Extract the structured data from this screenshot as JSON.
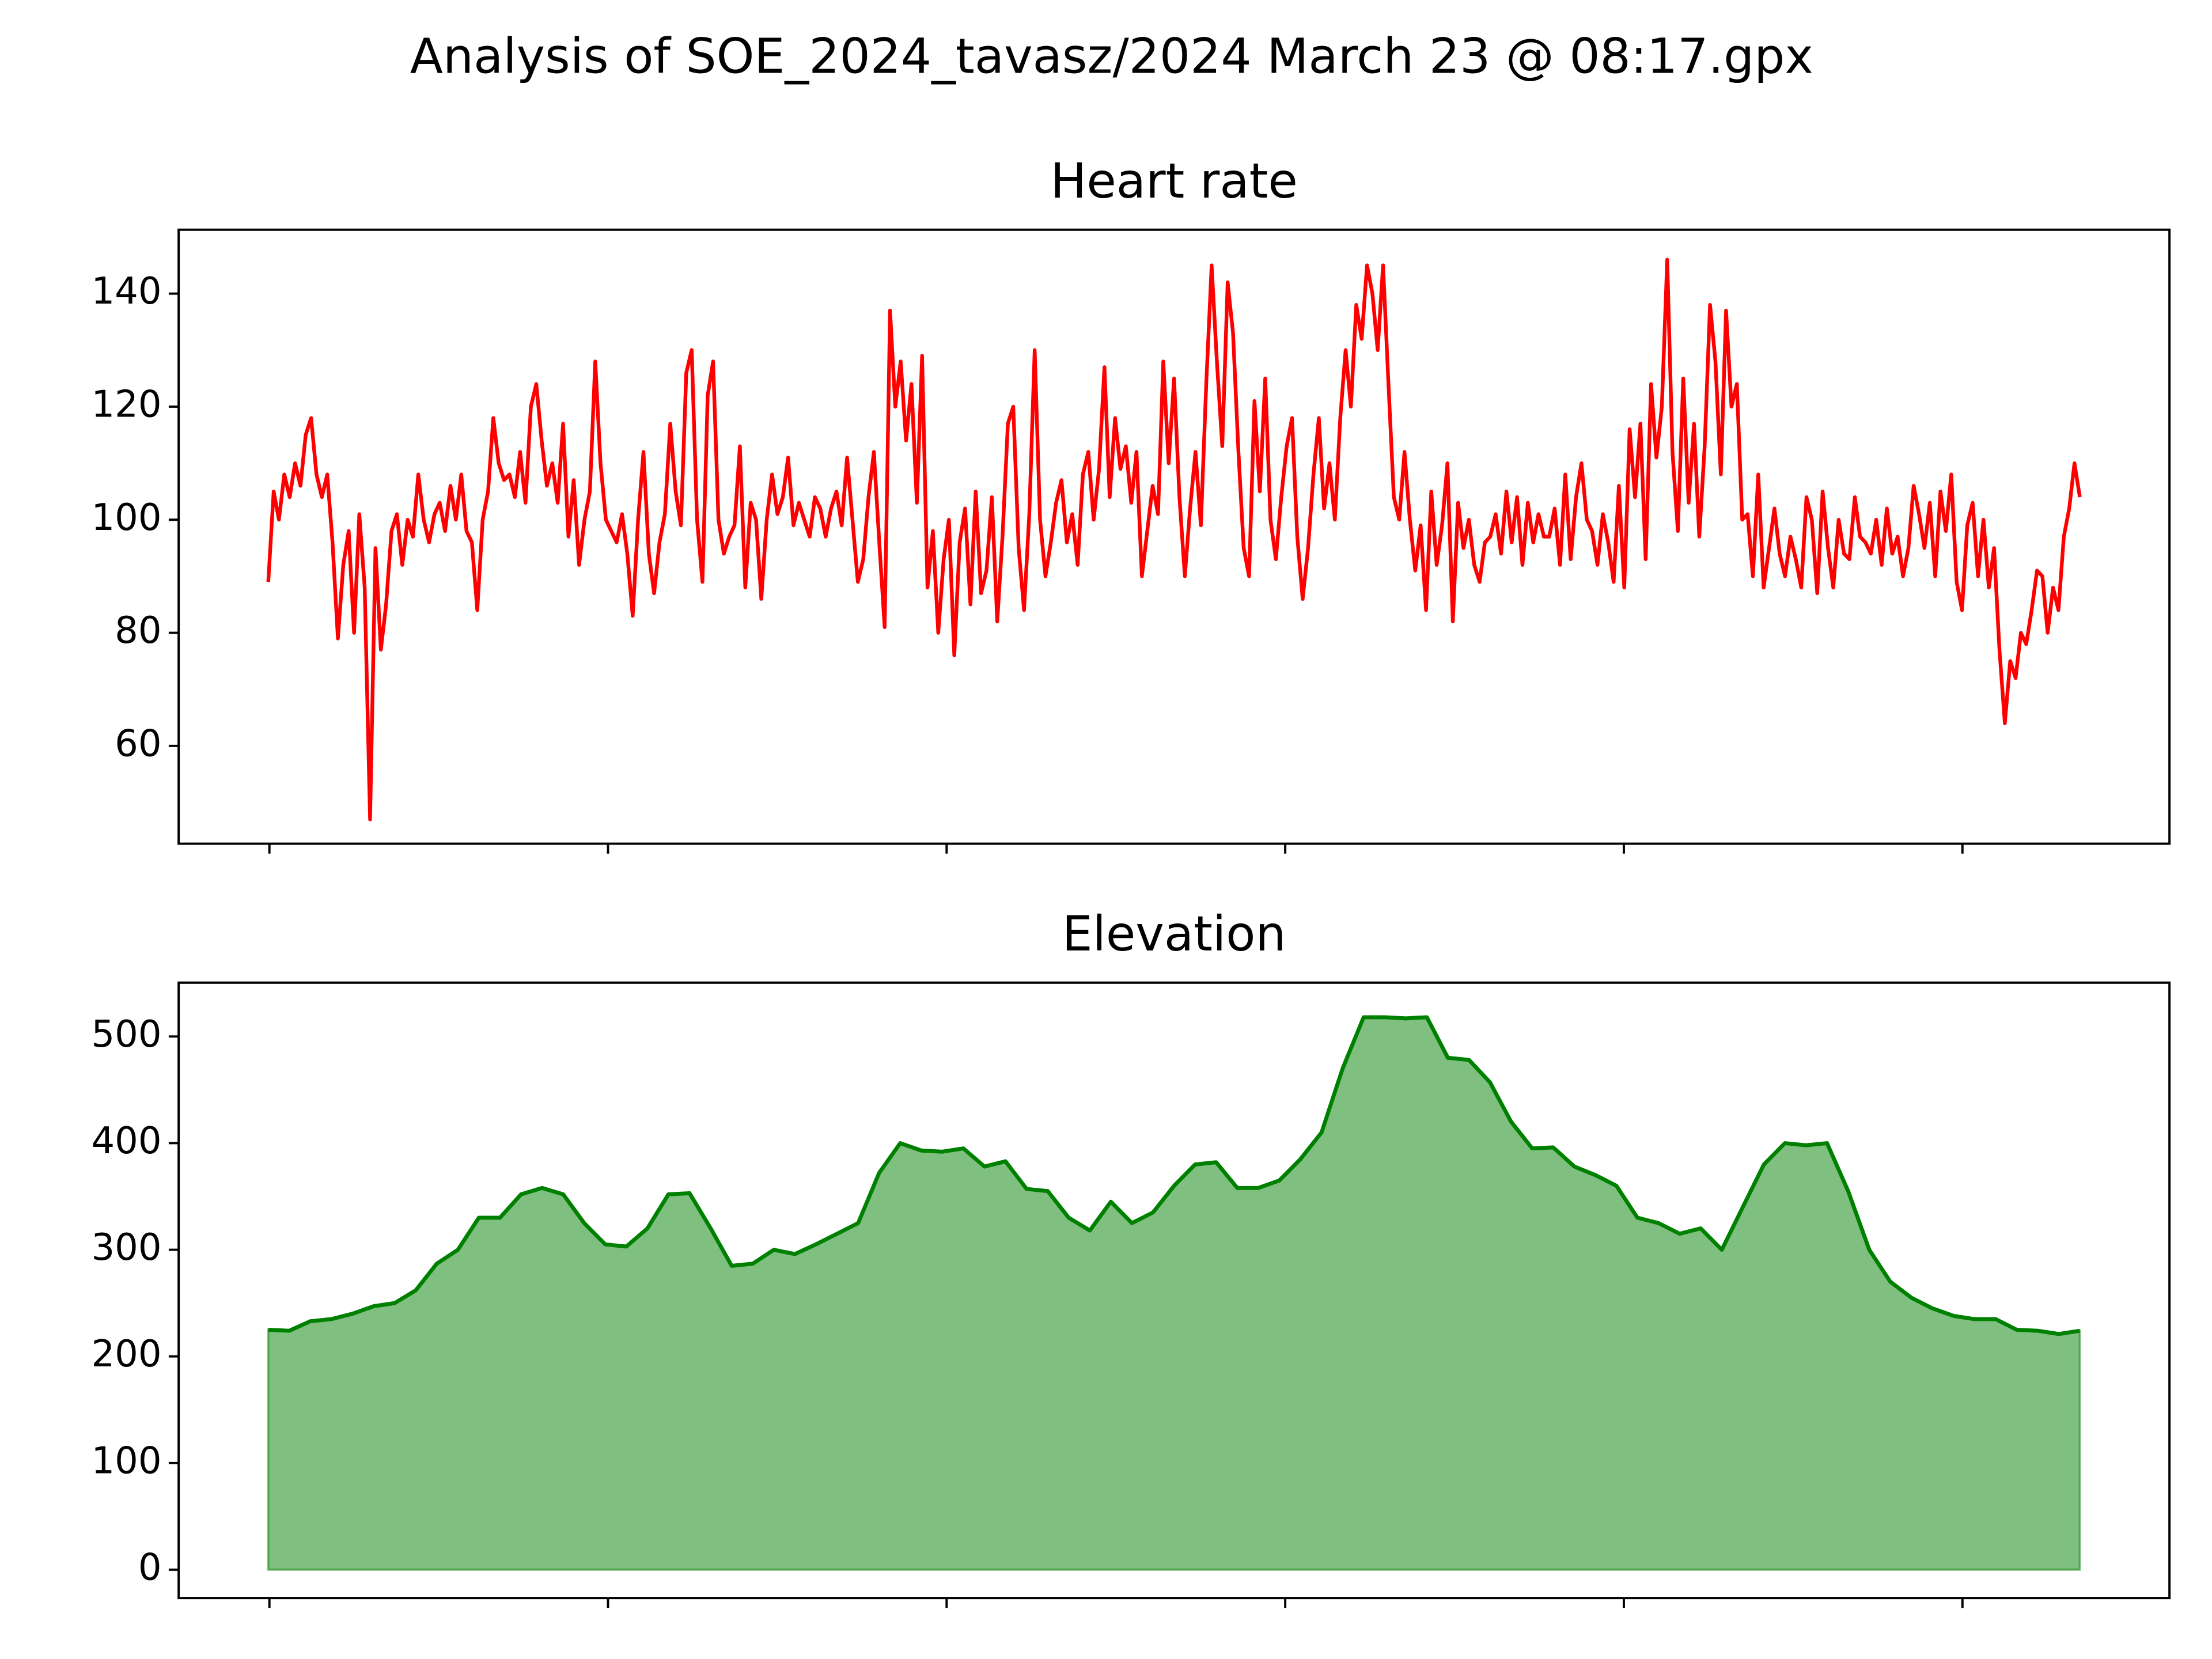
{
  "title": "Analysis of SOE_2024_tavasz/2024 March 23 @ 08:17.gpx",
  "chart_data": [
    {
      "type": "line",
      "title": "Heart rate",
      "color": "#ff0000",
      "ylim": [
        42.7,
        151.3
      ],
      "yticks": [
        60,
        80,
        100,
        120,
        140
      ],
      "values": [
        89,
        105,
        100,
        108,
        104,
        110,
        106,
        115,
        118,
        108,
        104,
        108,
        96,
        79,
        92,
        98,
        80,
        101,
        88,
        47,
        95,
        77,
        85,
        98,
        101,
        92,
        100,
        97,
        108,
        100,
        96,
        101,
        103,
        98,
        106,
        100,
        108,
        98,
        96,
        84,
        100,
        105,
        118,
        110,
        107,
        108,
        104,
        112,
        103,
        120,
        124,
        114,
        106,
        110,
        103,
        117,
        97,
        107,
        92,
        100,
        105,
        128,
        110,
        100,
        98,
        96,
        101,
        94,
        83,
        100,
        112,
        94,
        87,
        96,
        101,
        117,
        105,
        99,
        126,
        130,
        100,
        89,
        122,
        128,
        100,
        94,
        97,
        99,
        113,
        88,
        103,
        100,
        86,
        100,
        108,
        101,
        104,
        111,
        99,
        103,
        100,
        97,
        104,
        102,
        97,
        102,
        105,
        99,
        111,
        100,
        89,
        93,
        104,
        112,
        96,
        81,
        137,
        120,
        128,
        114,
        124,
        103,
        129,
        88,
        98,
        80,
        93,
        100,
        76,
        96,
        102,
        85,
        105,
        87,
        91,
        104,
        82,
        97,
        117,
        120,
        95,
        84,
        101,
        130,
        100,
        90,
        96,
        103,
        107,
        96,
        101,
        92,
        108,
        112,
        100,
        109,
        127,
        104,
        118,
        109,
        113,
        103,
        112,
        90,
        98,
        106,
        101,
        128,
        110,
        125,
        104,
        90,
        102,
        112,
        99,
        124,
        145,
        128,
        113,
        142,
        133,
        112,
        95,
        90,
        121,
        105,
        125,
        100,
        93,
        104,
        113,
        118,
        97,
        86,
        95,
        108,
        118,
        102,
        110,
        100,
        118,
        130,
        120,
        138,
        132,
        145,
        140,
        130,
        145,
        124,
        104,
        100,
        112,
        100,
        91,
        99,
        84,
        105,
        92,
        99,
        110,
        82,
        103,
        95,
        100,
        92,
        89,
        96,
        97,
        101,
        94,
        105,
        96,
        104,
        92,
        103,
        96,
        101,
        97,
        97,
        102,
        92,
        108,
        93,
        104,
        110,
        100,
        98,
        92,
        101,
        96,
        89,
        106,
        88,
        116,
        104,
        117,
        93,
        124,
        111,
        120,
        146,
        112,
        98,
        125,
        103,
        117,
        97,
        113,
        138,
        128,
        108,
        137,
        120,
        124,
        100,
        101,
        90,
        108,
        88,
        95,
        102,
        94,
        90,
        97,
        93,
        88,
        104,
        100,
        87,
        105,
        95,
        88,
        100,
        94,
        93,
        104,
        97,
        96,
        94,
        100,
        92,
        102,
        94,
        97,
        90,
        95,
        106,
        101,
        95,
        103,
        90,
        105,
        98,
        108,
        89,
        84,
        99,
        103,
        90,
        100,
        88,
        95,
        77,
        64,
        75,
        72,
        80,
        78,
        84,
        91,
        90,
        80,
        88,
        84,
        97,
        102,
        110,
        104
      ]
    },
    {
      "type": "area",
      "title": "Elevation",
      "color": "#008000",
      "ylim": [
        -26.6,
        550.5
      ],
      "yticks": [
        0,
        100,
        200,
        300,
        400,
        500
      ],
      "values": [
        225,
        224,
        233,
        235,
        240,
        247,
        250,
        262,
        287,
        300,
        330,
        330,
        352,
        358,
        352,
        325,
        305,
        303,
        320,
        352,
        353,
        320,
        285,
        287,
        300,
        296,
        305,
        315,
        325,
        372,
        400,
        393,
        392,
        395,
        378,
        383,
        357,
        355,
        330,
        318,
        345,
        325,
        335,
        360,
        380,
        382,
        358,
        358,
        365,
        385,
        410,
        470,
        518,
        518,
        517,
        518,
        480,
        478,
        457,
        420,
        395,
        396,
        378,
        370,
        360,
        330,
        325,
        315,
        320,
        300,
        340,
        380,
        400,
        398,
        400,
        355,
        300,
        270,
        255,
        245,
        238,
        235,
        235,
        225,
        224,
        221,
        224
      ]
    }
  ]
}
